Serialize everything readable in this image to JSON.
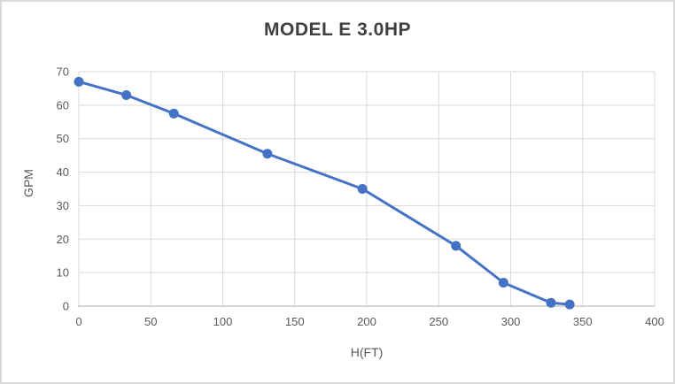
{
  "chart": {
    "title": "MODEL E 3.0HP",
    "x_axis_title": "H(FT)",
    "y_axis_title": "GPM"
  },
  "chart_data": {
    "type": "line",
    "title": "MODEL E 3.0HP",
    "xlabel": "H(FT)",
    "ylabel": "GPM",
    "series": [
      {
        "name": "MODEL E 3.0HP",
        "x": [
          0,
          33,
          66,
          131,
          197,
          262,
          295,
          328,
          341
        ],
        "y": [
          67,
          63,
          57.5,
          45.5,
          35,
          18,
          7,
          1,
          0.5
        ]
      }
    ],
    "xlim": [
      0,
      400
    ],
    "ylim": [
      0,
      70
    ],
    "x_ticks": [
      0,
      50,
      100,
      150,
      200,
      250,
      300,
      350,
      400
    ],
    "y_ticks": [
      0,
      10,
      20,
      30,
      40,
      50,
      60,
      70
    ],
    "grid": true,
    "legend_position": "none",
    "marker": "circle",
    "colors": {
      "line": "#4472C4",
      "marker": "#4472C4",
      "gridline": "#D9D9D9",
      "axis_line": "#BFBFBF",
      "tick_label": "#595959",
      "title": "#3F3F3F",
      "background": "#FFFFFF",
      "border": "#D9D9D9"
    }
  }
}
